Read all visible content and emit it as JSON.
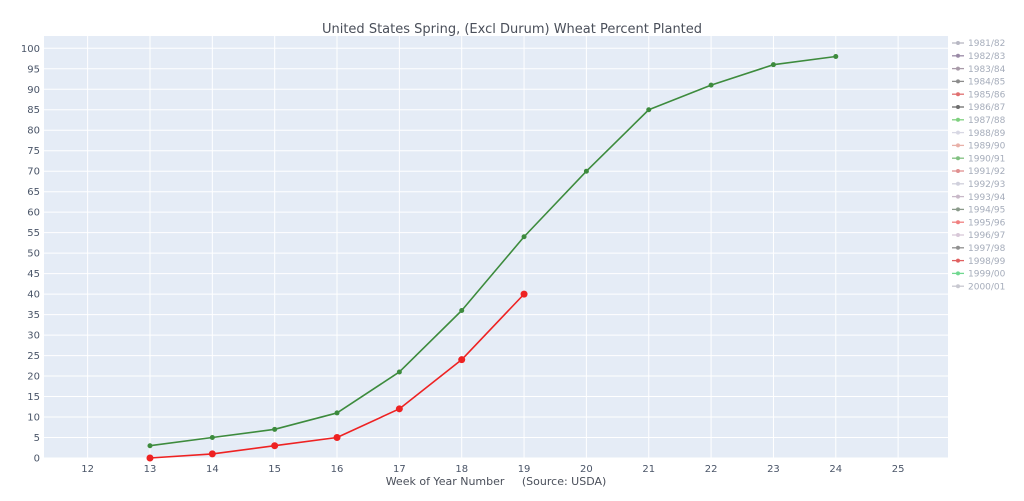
{
  "chart_data": {
    "type": "line",
    "title": "United States Spring, (Excl Durum) Wheat Percent Planted",
    "xlabel": "Week of Year Number     (Source: USDA)",
    "ylabel": "",
    "xlim": [
      11.3,
      25.8
    ],
    "ylim": [
      0,
      103
    ],
    "x_ticks": [
      12,
      13,
      14,
      15,
      16,
      17,
      18,
      19,
      20,
      21,
      22,
      23,
      24,
      25
    ],
    "y_ticks": [
      0,
      5,
      10,
      15,
      20,
      25,
      30,
      35,
      40,
      45,
      50,
      55,
      60,
      65,
      70,
      75,
      80,
      85,
      90,
      95,
      100
    ],
    "grid": true,
    "legend_position": "right",
    "background_color": "#e5ecf6",
    "series": [
      {
        "x": [
          13,
          14,
          15,
          16,
          17,
          18,
          19,
          20,
          21,
          22,
          23,
          24
        ],
        "values": [
          3,
          5,
          7,
          11,
          21,
          36,
          54,
          70,
          85,
          91,
          96,
          98
        ],
        "color": "#3d8b3d",
        "marker_size": 2.5
      },
      {
        "x": [
          13,
          14,
          15,
          16,
          17,
          18,
          19
        ],
        "values": [
          0,
          1,
          3,
          5,
          12,
          24,
          40
        ],
        "color": "#ee2222",
        "marker_size": 3.5
      }
    ],
    "legend": [
      {
        "label": "1981/82",
        "color": "#b8b8c4"
      },
      {
        "label": "1982/83",
        "color": "#9a8aa6"
      },
      {
        "label": "1983/84",
        "color": "#a89aa8"
      },
      {
        "label": "1984/85",
        "color": "#8c8c8c"
      },
      {
        "label": "1985/86",
        "color": "#e07070"
      },
      {
        "label": "1986/87",
        "color": "#6e6e6e"
      },
      {
        "label": "1987/88",
        "color": "#7ed07e"
      },
      {
        "label": "1988/89",
        "color": "#d8d8e4"
      },
      {
        "label": "1989/90",
        "color": "#e8b0a8"
      },
      {
        "label": "1990/91",
        "color": "#80c080"
      },
      {
        "label": "1991/92",
        "color": "#e09090"
      },
      {
        "label": "1992/93",
        "color": "#d0d0dc"
      },
      {
        "label": "1993/94",
        "color": "#c8b8c8"
      },
      {
        "label": "1994/95",
        "color": "#8a9a8a"
      },
      {
        "label": "1995/96",
        "color": "#f08080"
      },
      {
        "label": "1996/97",
        "color": "#d8c8d8"
      },
      {
        "label": "1997/98",
        "color": "#909090"
      },
      {
        "label": "1998/99",
        "color": "#e06060"
      },
      {
        "label": "1999/00",
        "color": "#70d890"
      },
      {
        "label": "2000/01",
        "color": "#c8c8d0"
      }
    ]
  }
}
